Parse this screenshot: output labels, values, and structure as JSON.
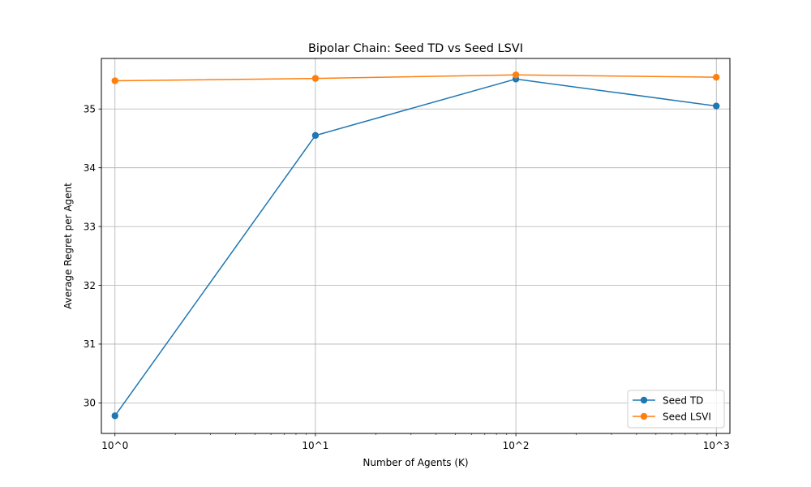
{
  "chart_data": {
    "type": "line",
    "title": "Bipolar Chain: Seed TD vs Seed LSVI",
    "xlabel": "Number of Agents (K)",
    "ylabel": "Average Regret per Agent",
    "categories": [
      "10^0",
      "10^1",
      "10^2",
      "10^3"
    ],
    "y_ticks": [
      "30",
      "31",
      "32",
      "33",
      "34",
      "35"
    ],
    "ylim": [
      29.48,
      35.86
    ],
    "grid": true,
    "legend_position": "lower-right",
    "series": [
      {
        "name": "Seed TD",
        "color": "#1f77b4",
        "values": [
          29.78,
          34.55,
          35.51,
          35.05
        ]
      },
      {
        "name": "Seed LSVI",
        "color": "#ff7f0e",
        "values": [
          35.48,
          35.52,
          35.58,
          35.54
        ]
      }
    ]
  }
}
